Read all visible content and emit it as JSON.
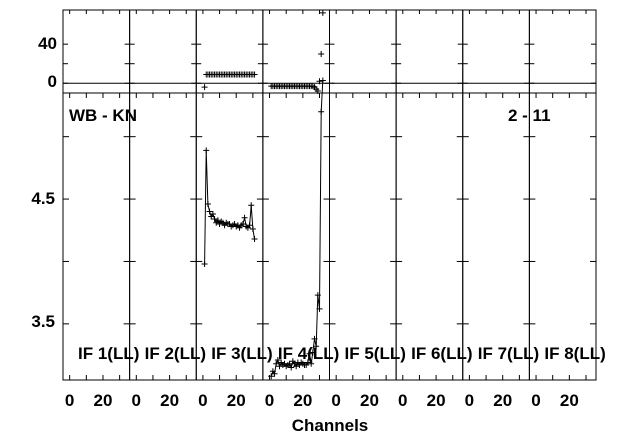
{
  "chart_data": {
    "type": "scatter",
    "title_left": "WB - KN",
    "title_right": "2 - 11",
    "xlabel": "Channels",
    "x_tick_labels": [
      "0",
      "20"
    ],
    "xlim": [
      -4,
      36
    ],
    "panels": [
      {
        "label": "IF 1(LL)",
        "phase": [],
        "amp": []
      },
      {
        "label": "IF 2(LL)",
        "phase": [],
        "amp": []
      },
      {
        "label": "IF 3(LL)",
        "phase": [
          [
            1,
            -4
          ],
          [
            2,
            9
          ],
          [
            3,
            9
          ],
          [
            4,
            9
          ],
          [
            5,
            9
          ],
          [
            6,
            9
          ],
          [
            7,
            9
          ],
          [
            8,
            9
          ],
          [
            9,
            9
          ],
          [
            10,
            9
          ],
          [
            11,
            9
          ],
          [
            12,
            9
          ],
          [
            13,
            9
          ],
          [
            14,
            9
          ],
          [
            15,
            9
          ],
          [
            16,
            9
          ],
          [
            17,
            9
          ],
          [
            18,
            9
          ],
          [
            19,
            9
          ],
          [
            20,
            9
          ],
          [
            21,
            9
          ],
          [
            22,
            9
          ],
          [
            23,
            9
          ],
          [
            24,
            9
          ],
          [
            25,
            9
          ],
          [
            26,
            9
          ],
          [
            27,
            9
          ],
          [
            28,
            9
          ],
          [
            29,
            9
          ],
          [
            30,
            9
          ],
          [
            31,
            9
          ]
        ],
        "amp": [
          [
            1,
            3.98
          ],
          [
            2,
            4.89
          ],
          [
            3,
            4.46
          ],
          [
            4,
            4.4
          ],
          [
            5,
            4.36
          ],
          [
            6,
            4.38
          ],
          [
            7,
            4.34
          ],
          [
            8,
            4.31
          ],
          [
            9,
            4.33
          ],
          [
            10,
            4.3
          ],
          [
            11,
            4.32
          ],
          [
            12,
            4.31
          ],
          [
            13,
            4.29
          ],
          [
            14,
            4.31
          ],
          [
            15,
            4.3
          ],
          [
            16,
            4.3
          ],
          [
            17,
            4.28
          ],
          [
            18,
            4.29
          ],
          [
            19,
            4.3
          ],
          [
            20,
            4.28
          ],
          [
            21,
            4.29
          ],
          [
            22,
            4.27
          ],
          [
            23,
            4.29
          ],
          [
            24,
            4.3
          ],
          [
            25,
            4.35
          ],
          [
            26,
            4.28
          ],
          [
            27,
            4.27
          ],
          [
            28,
            4.29
          ],
          [
            29,
            4.45
          ],
          [
            30,
            4.26
          ],
          [
            31,
            4.18
          ]
        ]
      },
      {
        "label": "IF 4(LL)",
        "phase": [
          [
            1,
            -3
          ],
          [
            2,
            -3
          ],
          [
            3,
            -3
          ],
          [
            4,
            -3
          ],
          [
            5,
            -3
          ],
          [
            6,
            -3
          ],
          [
            7,
            -3
          ],
          [
            8,
            -3
          ],
          [
            9,
            -3
          ],
          [
            10,
            -3
          ],
          [
            11,
            -3
          ],
          [
            12,
            -3
          ],
          [
            13,
            -3
          ],
          [
            14,
            -3
          ],
          [
            15,
            -3
          ],
          [
            16,
            -3
          ],
          [
            17,
            -3
          ],
          [
            18,
            -3
          ],
          [
            19,
            -3
          ],
          [
            20,
            -3
          ],
          [
            21,
            -3
          ],
          [
            22,
            -3
          ],
          [
            23,
            -3
          ],
          [
            24,
            -3
          ],
          [
            25,
            -3
          ],
          [
            26,
            -3
          ],
          [
            27,
            -4
          ],
          [
            28,
            -6
          ],
          [
            29,
            -8
          ],
          [
            30,
            2
          ],
          [
            31,
            30
          ],
          [
            32,
            72
          ]
        ],
        "amp": [
          [
            1,
            3.08
          ],
          [
            2,
            3.12
          ],
          [
            3,
            3.1
          ],
          [
            4,
            3.18
          ],
          [
            5,
            3.21
          ],
          [
            6,
            3.16
          ],
          [
            7,
            3.19
          ],
          [
            8,
            3.17
          ],
          [
            9,
            3.18
          ],
          [
            10,
            3.16
          ],
          [
            11,
            3.17
          ],
          [
            12,
            3.18
          ],
          [
            13,
            3.15
          ],
          [
            14,
            3.2
          ],
          [
            15,
            3.18
          ],
          [
            16,
            3.16
          ],
          [
            17,
            3.19
          ],
          [
            18,
            3.17
          ],
          [
            19,
            3.19
          ],
          [
            20,
            3.18
          ],
          [
            21,
            3.17
          ],
          [
            22,
            3.17
          ],
          [
            23,
            3.19
          ],
          [
            24,
            3.26
          ],
          [
            25,
            3.18
          ],
          [
            26,
            3.27
          ],
          [
            27,
            3.38
          ],
          [
            28,
            3.32
          ],
          [
            29,
            3.73
          ],
          [
            30,
            3.62
          ],
          [
            31,
            5.2
          ],
          [
            32,
            5.45
          ]
        ]
      },
      {
        "label": "IF 5(LL)",
        "phase": [],
        "amp": []
      },
      {
        "label": "IF 6(LL)",
        "phase": [],
        "amp": []
      },
      {
        "label": "IF 7(LL)",
        "phase": [],
        "amp": []
      },
      {
        "label": "IF 8(LL)",
        "phase": [],
        "amp": []
      }
    ],
    "phase_axis": {
      "ylim": [
        -10,
        75
      ],
      "ticks": [
        40,
        0
      ]
    },
    "amp_axis": {
      "ylim": [
        3.05,
        5.35
      ],
      "ticks": [
        4.5,
        3.5
      ]
    }
  }
}
